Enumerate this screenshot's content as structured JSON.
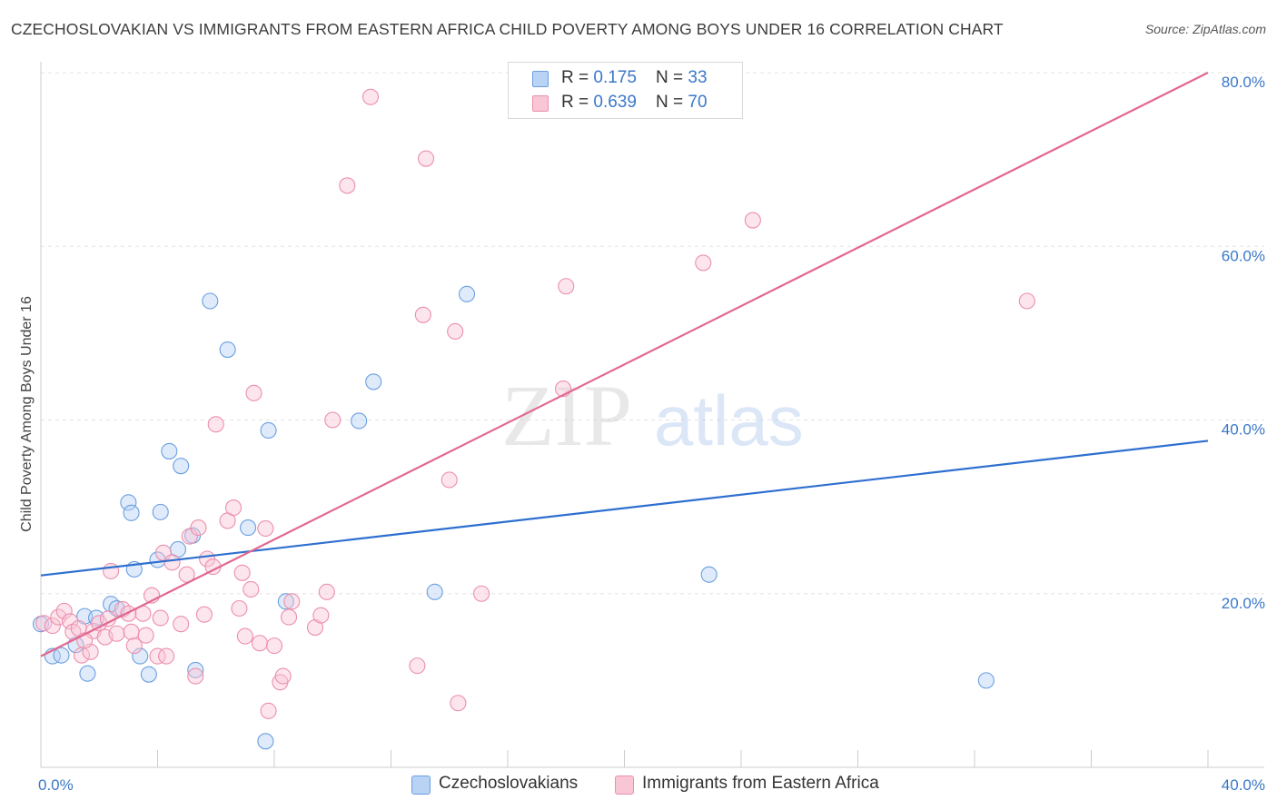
{
  "title": "CZECHOSLOVAKIAN VS IMMIGRANTS FROM EASTERN AFRICA CHILD POVERTY AMONG BOYS UNDER 16 CORRELATION CHART",
  "source": "Source: ZipAtlas.com",
  "watermark": {
    "zip": "ZIP",
    "atlas": "atlas"
  },
  "legend": {
    "rows": [
      {
        "r_label": "R = ",
        "r_value": "0.175",
        "n_label": "N = ",
        "n_value": "33"
      },
      {
        "r_label": "R = ",
        "r_value": "0.639",
        "n_label": "N = ",
        "n_value": "70"
      }
    ]
  },
  "chart_data": {
    "type": "scatter",
    "title": "CZECHOSLOVAKIAN VS IMMIGRANTS FROM EASTERN AFRICA CHILD POVERTY AMONG BOYS UNDER 16 CORRELATION CHART",
    "xlabel": "",
    "ylabel": "Child Poverty Among Boys Under 16",
    "xlim": [
      0,
      40
    ],
    "ylim": [
      0,
      80
    ],
    "x_tick_labels": [
      "0.0%",
      "40.0%"
    ],
    "y_ticks": [
      20,
      40,
      60,
      80
    ],
    "y_tick_labels": [
      "20.0%",
      "40.0%",
      "60.0%",
      "80.0%"
    ],
    "grid": true,
    "series": [
      {
        "name": "Czechoslovakians",
        "color": "#6a9fe0",
        "fill": "#b8d3f4",
        "trend_color": "#2e6fd0",
        "trend": [
          [
            0,
            22.1
          ],
          [
            40,
            37.6
          ]
        ],
        "points": [
          [
            0.0,
            16.5
          ],
          [
            0.4,
            12.8
          ],
          [
            0.7,
            12.9
          ],
          [
            1.2,
            14.1
          ],
          [
            1.5,
            17.4
          ],
          [
            1.6,
            10.8
          ],
          [
            1.9,
            17.2
          ],
          [
            2.4,
            18.8
          ],
          [
            2.6,
            18.3
          ],
          [
            3.0,
            30.5
          ],
          [
            3.1,
            29.3
          ],
          [
            3.4,
            12.8
          ],
          [
            3.7,
            10.7
          ],
          [
            4.0,
            23.9
          ],
          [
            4.1,
            29.4
          ],
          [
            4.4,
            36.4
          ],
          [
            4.7,
            25.1
          ],
          [
            4.8,
            34.7
          ],
          [
            5.2,
            26.7
          ],
          [
            5.3,
            11.2
          ],
          [
            5.8,
            53.7
          ],
          [
            6.4,
            48.1
          ],
          [
            7.1,
            27.6
          ],
          [
            7.8,
            38.8
          ],
          [
            8.4,
            19.1
          ],
          [
            10.9,
            39.9
          ],
          [
            11.4,
            44.4
          ],
          [
            13.5,
            20.2
          ],
          [
            14.6,
            54.5
          ],
          [
            22.9,
            22.2
          ],
          [
            32.4,
            10.0
          ],
          [
            7.7,
            3.0
          ],
          [
            3.2,
            22.8
          ]
        ]
      },
      {
        "name": "Immigrants from Eastern Africa",
        "color": "#ec8fad",
        "fill": "#f9c6d6",
        "trend_color": "#e2688f",
        "trend": [
          [
            0,
            12.8
          ],
          [
            40,
            80.0
          ]
        ],
        "points": [
          [
            0.1,
            16.6
          ],
          [
            0.4,
            16.3
          ],
          [
            0.6,
            17.3
          ],
          [
            0.8,
            18.0
          ],
          [
            1.0,
            16.8
          ],
          [
            1.1,
            15.6
          ],
          [
            1.3,
            16.0
          ],
          [
            1.4,
            12.9
          ],
          [
            1.7,
            13.3
          ],
          [
            1.8,
            15.7
          ],
          [
            2.0,
            16.6
          ],
          [
            2.2,
            15.0
          ],
          [
            2.4,
            22.6
          ],
          [
            2.6,
            15.4
          ],
          [
            2.8,
            18.2
          ],
          [
            3.0,
            17.7
          ],
          [
            3.1,
            15.6
          ],
          [
            3.2,
            14.0
          ],
          [
            3.5,
            17.7
          ],
          [
            3.6,
            15.2
          ],
          [
            3.8,
            19.8
          ],
          [
            4.0,
            12.8
          ],
          [
            4.1,
            17.2
          ],
          [
            4.2,
            24.7
          ],
          [
            4.3,
            12.8
          ],
          [
            4.5,
            23.6
          ],
          [
            4.8,
            16.5
          ],
          [
            5.0,
            22.2
          ],
          [
            5.1,
            26.6
          ],
          [
            5.3,
            10.5
          ],
          [
            5.4,
            27.6
          ],
          [
            5.6,
            17.6
          ],
          [
            5.7,
            24.0
          ],
          [
            5.9,
            23.1
          ],
          [
            6.0,
            39.5
          ],
          [
            6.4,
            28.4
          ],
          [
            6.6,
            29.9
          ],
          [
            6.8,
            18.3
          ],
          [
            6.9,
            22.4
          ],
          [
            7.0,
            15.1
          ],
          [
            7.2,
            20.5
          ],
          [
            7.3,
            43.1
          ],
          [
            7.5,
            14.3
          ],
          [
            7.7,
            27.5
          ],
          [
            7.8,
            6.5
          ],
          [
            8.0,
            14.0
          ],
          [
            8.2,
            9.8
          ],
          [
            8.3,
            10.5
          ],
          [
            8.5,
            17.3
          ],
          [
            8.6,
            19.1
          ],
          [
            9.4,
            16.1
          ],
          [
            9.6,
            17.5
          ],
          [
            9.8,
            20.2
          ],
          [
            10.0,
            40.0
          ],
          [
            10.5,
            67.0
          ],
          [
            11.3,
            77.2
          ],
          [
            12.9,
            11.7
          ],
          [
            13.1,
            52.1
          ],
          [
            13.2,
            70.1
          ],
          [
            14.0,
            33.1
          ],
          [
            14.2,
            50.2
          ],
          [
            14.3,
            7.4
          ],
          [
            15.1,
            20.0
          ],
          [
            17.9,
            43.6
          ],
          [
            18.0,
            55.4
          ],
          [
            22.7,
            58.1
          ],
          [
            24.4,
            63.0
          ],
          [
            33.8,
            53.7
          ],
          [
            2.3,
            17.1
          ],
          [
            1.5,
            14.6
          ]
        ]
      }
    ]
  }
}
